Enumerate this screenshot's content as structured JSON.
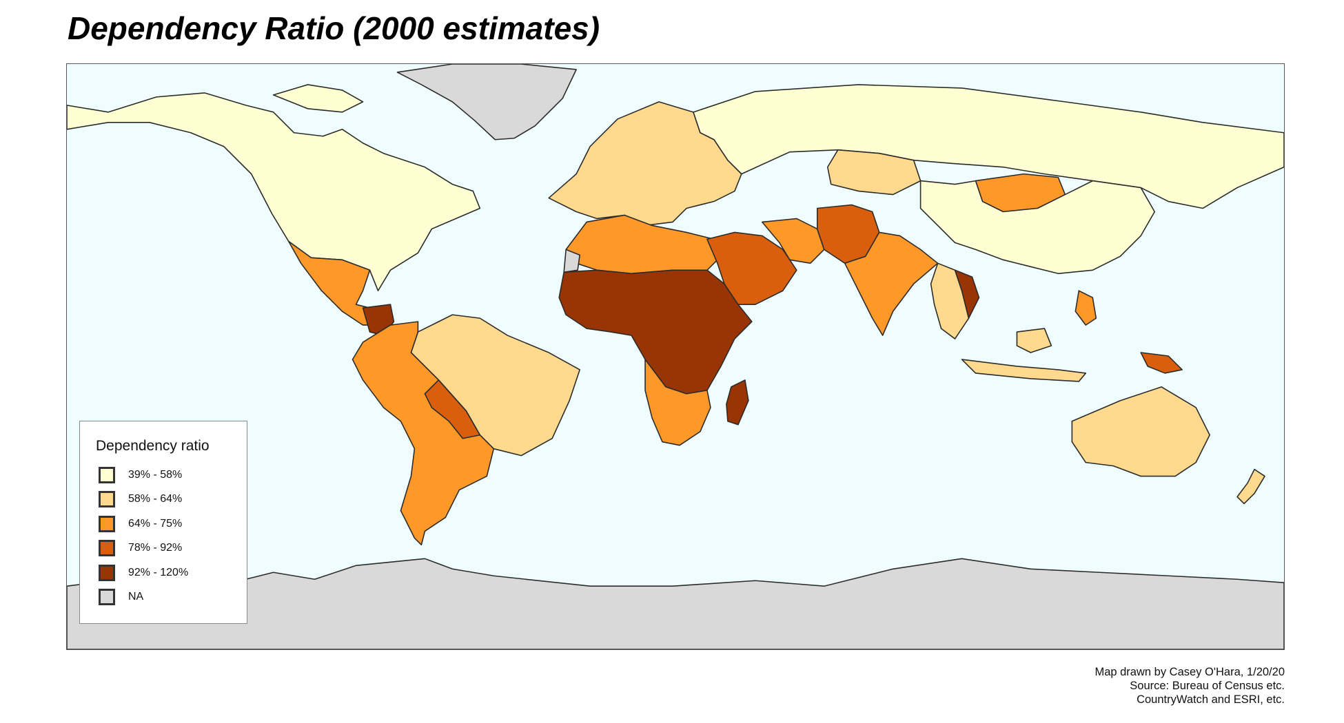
{
  "title": "Dependency Ratio (2000 estimates)",
  "legend": {
    "title": "Dependency ratio",
    "items": [
      {
        "label": "39% - 58%",
        "color": "#ffffd4"
      },
      {
        "label": "58% - 64%",
        "color": "#fed98e"
      },
      {
        "label": "64% - 75%",
        "color": "#fe9929"
      },
      {
        "label": "78% - 92%",
        "color": "#d95f0e"
      },
      {
        "label": "92% - 120%",
        "color": "#993404"
      },
      {
        "label": "NA",
        "color": "#d9d9d9"
      }
    ]
  },
  "credits": {
    "line1": "Map drawn by Casey O'Hara, 1/20/20",
    "line2": "Source: Bureau of Census etc.",
    "line3": "CountryWatch and ESRI, etc."
  },
  "map": {
    "ocean_color": "#effdfe",
    "regions": [
      {
        "name": "North America (Canada, USA)",
        "class": "39% - 58%"
      },
      {
        "name": "Greenland",
        "class": "NA"
      },
      {
        "name": "Mexico & Central America",
        "class": "64% - 75%"
      },
      {
        "name": "Guatemala / Honduras",
        "class": "92% - 120%"
      },
      {
        "name": "Brazil",
        "class": "58% - 64%"
      },
      {
        "name": "Andean & Southern South America",
        "class": "64% - 75%"
      },
      {
        "name": "Bolivia / Paraguay",
        "class": "78% - 92%"
      },
      {
        "name": "Europe",
        "class": "58% - 64%"
      },
      {
        "name": "Russia",
        "class": "39% - 58%"
      },
      {
        "name": "China",
        "class": "39% - 58%"
      },
      {
        "name": "Kazakhstan",
        "class": "58% - 64%"
      },
      {
        "name": "Mongolia",
        "class": "64% - 75%"
      },
      {
        "name": "North Africa",
        "class": "64% - 75%"
      },
      {
        "name": "Western Sahara",
        "class": "NA"
      },
      {
        "name": "Sub-Saharan Africa",
        "class": "92% - 120%"
      },
      {
        "name": "Southern Africa",
        "class": "64% - 75%"
      },
      {
        "name": "Madagascar",
        "class": "92% - 120%"
      },
      {
        "name": "Middle East",
        "class": "78% - 92%"
      },
      {
        "name": "Iran",
        "class": "64% - 75%"
      },
      {
        "name": "Afghanistan / Pakistan",
        "class": "78% - 92%"
      },
      {
        "name": "India",
        "class": "64% - 75%"
      },
      {
        "name": "Southeast Asia",
        "class": "58% - 64%"
      },
      {
        "name": "Laos / Cambodia",
        "class": "92% - 120%"
      },
      {
        "name": "Philippines",
        "class": "64% - 75%"
      },
      {
        "name": "Papua New Guinea",
        "class": "78% - 92%"
      },
      {
        "name": "Australia",
        "class": "58% - 64%"
      },
      {
        "name": "New Zealand",
        "class": "58% - 64%"
      },
      {
        "name": "Antarctica",
        "class": "NA"
      }
    ]
  }
}
